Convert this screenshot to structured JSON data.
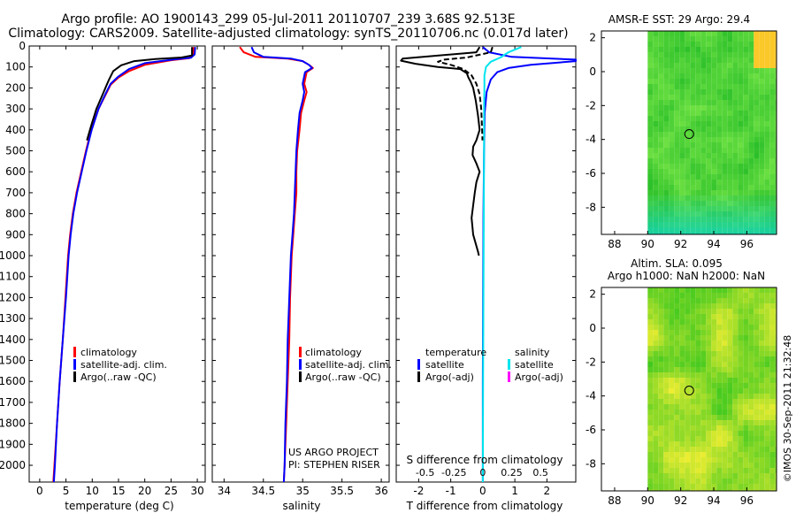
{
  "title": {
    "line1": "Argo profile: AO 1900143_299 05-Jul-2011 20110707_239 3.68S 92.513E",
    "line2": "Climatology: CARS2009. Satellite-adjusted climatology: synTS_20110706.nc (0.017d later)"
  },
  "colors": {
    "clim": "#ff0000",
    "sat": "#0000ff",
    "argo": "#000000",
    "sat_s": "#00e5ee",
    "argo_s": "#ff00ff"
  },
  "depth_axis": {
    "min": 0,
    "max": 2080,
    "ticks": [
      0,
      100,
      200,
      300,
      400,
      500,
      600,
      700,
      800,
      900,
      1000,
      1100,
      1200,
      1300,
      1400,
      1500,
      1600,
      1700,
      1800,
      1900,
      2000
    ]
  },
  "chart_data": [
    {
      "id": "temperature",
      "type": "line",
      "xlabel": "temperature (deg C)",
      "ylabel": "depth",
      "xlim": [
        -2,
        31.5
      ],
      "xticks": [
        0,
        5,
        10,
        15,
        20,
        25,
        30
      ],
      "legend": {
        "clim": "climatology",
        "sat": "satellite-adj. clim.",
        "argo": "Argo(..raw -QC)"
      },
      "series": [
        {
          "name": "climatology",
          "color_key": "clim",
          "points": [
            [
              29.3,
              5
            ],
            [
              29.2,
              40
            ],
            [
              28.5,
              58
            ],
            [
              25,
              68
            ],
            [
              20,
              90
            ],
            [
              17,
              120
            ],
            [
              15,
              150
            ],
            [
              13.5,
              185
            ],
            [
              12.6,
              230
            ],
            [
              11.2,
              300
            ],
            [
              9.8,
              400
            ],
            [
              8.8,
              500
            ],
            [
              7.9,
              600
            ],
            [
              7.0,
              700
            ],
            [
              6.3,
              800
            ],
            [
              5.8,
              900
            ],
            [
              5.4,
              1000
            ],
            [
              4.9,
              1200
            ],
            [
              4.4,
              1400
            ],
            [
              3.8,
              1600
            ],
            [
              3.3,
              1800
            ],
            [
              2.8,
              2000
            ],
            [
              2.6,
              2080
            ]
          ]
        },
        {
          "name": "satellite-adj. clim.",
          "color_key": "sat",
          "points": [
            [
              29.6,
              5
            ],
            [
              29.5,
              40
            ],
            [
              28.8,
              56
            ],
            [
              25.5,
              64
            ],
            [
              20,
              82
            ],
            [
              17,
              110
            ],
            [
              15,
              145
            ],
            [
              13.5,
              180
            ],
            [
              12.6,
              225
            ],
            [
              11.2,
              300
            ],
            [
              9.9,
              400
            ],
            [
              8.9,
              500
            ],
            [
              8.0,
              600
            ],
            [
              7.1,
              700
            ],
            [
              6.4,
              800
            ],
            [
              5.9,
              900
            ],
            [
              5.5,
              1000
            ],
            [
              5.0,
              1200
            ],
            [
              4.4,
              1400
            ],
            [
              3.8,
              1600
            ],
            [
              3.3,
              1800
            ],
            [
              2.9,
              2000
            ],
            [
              2.7,
              2080
            ]
          ]
        },
        {
          "name": "Argo(..raw -QC)",
          "color_key": "argo",
          "points": [
            [
              29.0,
              5
            ],
            [
              29.0,
              45
            ],
            [
              27,
              55
            ],
            [
              22,
              62
            ],
            [
              18,
              72
            ],
            [
              15.5,
              92
            ],
            [
              14,
              120
            ],
            [
              13.2,
              160
            ],
            [
              12.6,
              195
            ],
            [
              12.0,
              230
            ],
            [
              10.8,
              300
            ],
            [
              9.8,
              380
            ],
            [
              9.0,
              450
            ]
          ]
        }
      ]
    },
    {
      "id": "salinity",
      "type": "line",
      "xlabel": "salinity",
      "ylabel": "depth",
      "xlim": [
        33.85,
        36.1
      ],
      "xticks": [
        34,
        34.5,
        35,
        35.5,
        36
      ],
      "legend": {
        "clim": "climatology",
        "sat": "satellite-adj. clim.",
        "argo": "Argo(..raw -QC)"
      },
      "annotation": [
        "US ARGO PROJECT",
        "PI: STEPHEN RISER"
      ],
      "series": [
        {
          "name": "climatology",
          "color_key": "clim",
          "points": [
            [
              34.2,
              5
            ],
            [
              34.25,
              30
            ],
            [
              34.4,
              52
            ],
            [
              34.8,
              60
            ],
            [
              35.0,
              72
            ],
            [
              35.08,
              90
            ],
            [
              35.13,
              105
            ],
            [
              35.05,
              125
            ],
            [
              35.02,
              180
            ],
            [
              35.05,
              220
            ],
            [
              35.02,
              260
            ],
            [
              34.98,
              320
            ],
            [
              34.96,
              400
            ],
            [
              34.93,
              500
            ],
            [
              34.92,
              600
            ],
            [
              34.92,
              700
            ],
            [
              34.9,
              800
            ],
            [
              34.88,
              900
            ],
            [
              34.86,
              1000
            ],
            [
              34.84,
              1200
            ],
            [
              34.83,
              1400
            ],
            [
              34.81,
              1600
            ],
            [
              34.79,
              1800
            ],
            [
              34.77,
              2000
            ],
            [
              34.76,
              2080
            ]
          ]
        },
        {
          "name": "satellite-adj. clim.",
          "color_key": "sat",
          "points": [
            [
              34.35,
              5
            ],
            [
              34.38,
              30
            ],
            [
              34.5,
              52
            ],
            [
              34.85,
              60
            ],
            [
              35.0,
              72
            ],
            [
              35.08,
              90
            ],
            [
              35.12,
              105
            ],
            [
              35.03,
              125
            ],
            [
              35.0,
              180
            ],
            [
              35.02,
              220
            ],
            [
              35.0,
              260
            ],
            [
              34.96,
              320
            ],
            [
              34.94,
              400
            ],
            [
              34.92,
              500
            ],
            [
              34.91,
              600
            ],
            [
              34.9,
              700
            ],
            [
              34.89,
              800
            ],
            [
              34.87,
              900
            ],
            [
              34.85,
              1000
            ],
            [
              34.83,
              1200
            ],
            [
              34.81,
              1400
            ],
            [
              34.8,
              1600
            ],
            [
              34.78,
              1800
            ],
            [
              34.77,
              2000
            ],
            [
              34.76,
              2080
            ]
          ]
        }
      ]
    },
    {
      "id": "difference",
      "type": "line",
      "xlabel": "T difference from climatology",
      "toplabel": "S difference from climatology",
      "ylabel": "depth",
      "xlim": [
        -2.7,
        2.9
      ],
      "xticks": [
        -2,
        -1,
        0,
        1,
        2
      ],
      "s_ticks": [
        {
          "label": "-0.5",
          "t": -1.8
        },
        {
          "label": "-0.25",
          "t": -0.9
        },
        {
          "label": "0",
          "t": 0
        },
        {
          "label": "0.25",
          "t": 0.9
        },
        {
          "label": "0.5",
          "t": 1.8
        }
      ],
      "legend": {
        "t_head": "temperature",
        "s_head": "salinity",
        "sat": "satellite",
        "argo": "Argo(-adj)"
      },
      "series": [
        {
          "name": "temperature satellite",
          "color_key": "sat",
          "points": [
            [
              0,
              5
            ],
            [
              0.2,
              30
            ],
            [
              0.9,
              52
            ],
            [
              2.9,
              65
            ],
            [
              2.9,
              72
            ],
            [
              1.5,
              90
            ],
            [
              0.8,
              105
            ],
            [
              0.45,
              125
            ],
            [
              0.25,
              160
            ],
            [
              0.12,
              220
            ],
            [
              0.06,
              320
            ],
            [
              0.04,
              500
            ],
            [
              0.02,
              800
            ],
            [
              0.01,
              1200
            ],
            [
              0,
              1600
            ],
            [
              0,
              2080
            ]
          ]
        },
        {
          "name": "salinity satellite",
          "color_key": "sat_s",
          "points": [
            [
              1.2,
              5
            ],
            [
              0.8,
              30
            ],
            [
              0.55,
              55
            ],
            [
              0.25,
              75
            ],
            [
              0.1,
              100
            ],
            [
              0.05,
              140
            ],
            [
              0.05,
              200
            ],
            [
              0.04,
              300
            ],
            [
              0.04,
              500
            ],
            [
              0.03,
              800
            ],
            [
              0.02,
              1200
            ],
            [
              0.01,
              1600
            ],
            [
              0,
              2080
            ]
          ]
        },
        {
          "name": "temperature Argo(-adj)",
          "color_key": "argo",
          "points": [
            [
              -0.1,
              5
            ],
            [
              -0.2,
              30
            ],
            [
              -2.5,
              60
            ],
            [
              -2.55,
              70
            ],
            [
              -2.1,
              85
            ],
            [
              -1.4,
              100
            ],
            [
              -0.7,
              110
            ],
            [
              -0.5,
              130
            ],
            [
              -0.45,
              150
            ],
            [
              -0.38,
              170
            ],
            [
              -0.3,
              200
            ],
            [
              -0.22,
              260
            ],
            [
              -0.15,
              330
            ],
            [
              -0.1,
              400
            ],
            [
              -0.2,
              450
            ],
            [
              -0.3,
              480
            ],
            [
              -0.32,
              520
            ],
            [
              -0.2,
              560
            ],
            [
              -0.1,
              600
            ],
            [
              -0.2,
              650
            ],
            [
              -0.25,
              700
            ],
            [
              -0.3,
              760
            ],
            [
              -0.35,
              820
            ],
            [
              -0.3,
              900
            ],
            [
              -0.15,
              980
            ],
            [
              -0.12,
              1000
            ]
          ]
        },
        {
          "name": "salinity Argo(-adj)",
          "color_key": "argo",
          "dashed": true,
          "points": [
            [
              0.3,
              5
            ],
            [
              0.25,
              30
            ],
            [
              -0.5,
              55
            ],
            [
              -1.2,
              65
            ],
            [
              -1.4,
              75
            ],
            [
              -1.0,
              90
            ],
            [
              -0.6,
              110
            ],
            [
              -0.35,
              140
            ],
            [
              -0.2,
              180
            ],
            [
              -0.1,
              230
            ],
            [
              -0.05,
              300
            ],
            [
              -0.02,
              400
            ],
            [
              -0.01,
              450
            ]
          ]
        }
      ]
    },
    {
      "id": "sst_map",
      "type": "heatmap",
      "title": "AMSR-E SST: 29 Argo: 29.4",
      "xticks": [
        88,
        90,
        92,
        94,
        96
      ],
      "yticks": [
        2,
        0,
        -2,
        -4,
        -6,
        -8
      ],
      "xlim": [
        87.2,
        97.8
      ],
      "ylim": [
        -9.6,
        2.4
      ],
      "data_xlim": [
        90,
        97.8
      ],
      "argo_position": {
        "lon": 92.513,
        "lat": -3.68
      }
    },
    {
      "id": "sla_map",
      "type": "heatmap",
      "title_line1": "Altim. SLA: 0.095",
      "title_line2": "Argo h1000: NaN h2000: NaN",
      "xticks": [
        88,
        90,
        92,
        94,
        96
      ],
      "yticks": [
        2,
        0,
        -2,
        -4,
        -6,
        -8
      ],
      "xlim": [
        87.2,
        97.8
      ],
      "ylim": [
        -9.6,
        2.4
      ],
      "data_xlim": [
        90,
        97.8
      ],
      "argo_position": {
        "lon": 92.513,
        "lat": -3.68
      }
    }
  ],
  "stamp": "©IMOS 30-Sep-2011 21:32:48"
}
